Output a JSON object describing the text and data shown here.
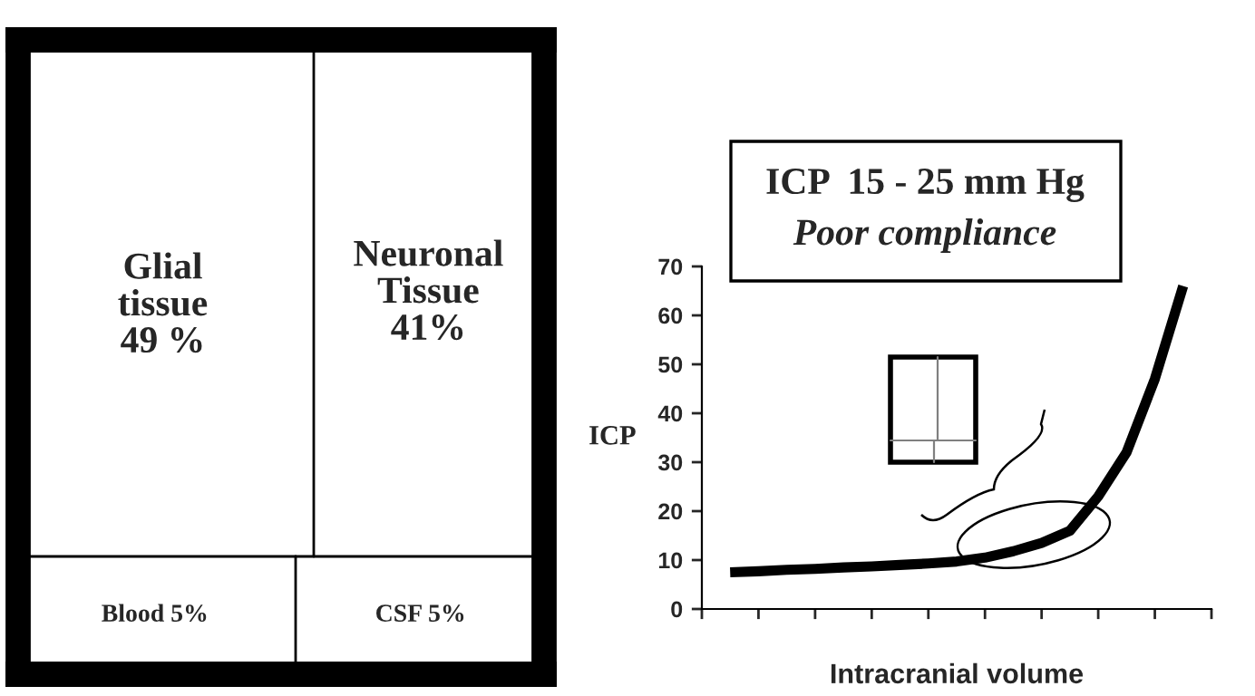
{
  "chart_data": [
    {
      "type": "other",
      "categories": [
        "Glial tissue",
        "Neuronal Tissue",
        "Blood",
        "CSF"
      ],
      "value_labels": [
        "49 %",
        "41%",
        "5%",
        "5%"
      ]
    },
    {
      "type": "line",
      "title": "ICP  15 - 25 mm Hg",
      "subtitle": "Poor compliance",
      "xlabel": "Intracranial volume",
      "ylabel": "ICP",
      "categories": [
        null,
        null,
        null,
        null,
        null,
        null,
        null,
        null,
        null,
        null,
        null,
        null,
        null,
        null,
        null,
        null,
        null
      ],
      "series": [
        {
          "color": "#000000",
          "values": [
            7.5,
            7.7,
            8,
            8.2,
            8.5,
            8.7,
            9,
            9.3,
            9.7,
            10.5,
            11.8,
            13.5,
            16,
            23,
            32,
            47,
            66
          ]
        }
      ],
      "ylim": [
        0,
        70
      ],
      "yticks": [
        0,
        10,
        20,
        30,
        40,
        50,
        60,
        70
      ],
      "grid": false,
      "marker": "none",
      "line_style": "solid"
    }
  ]
}
